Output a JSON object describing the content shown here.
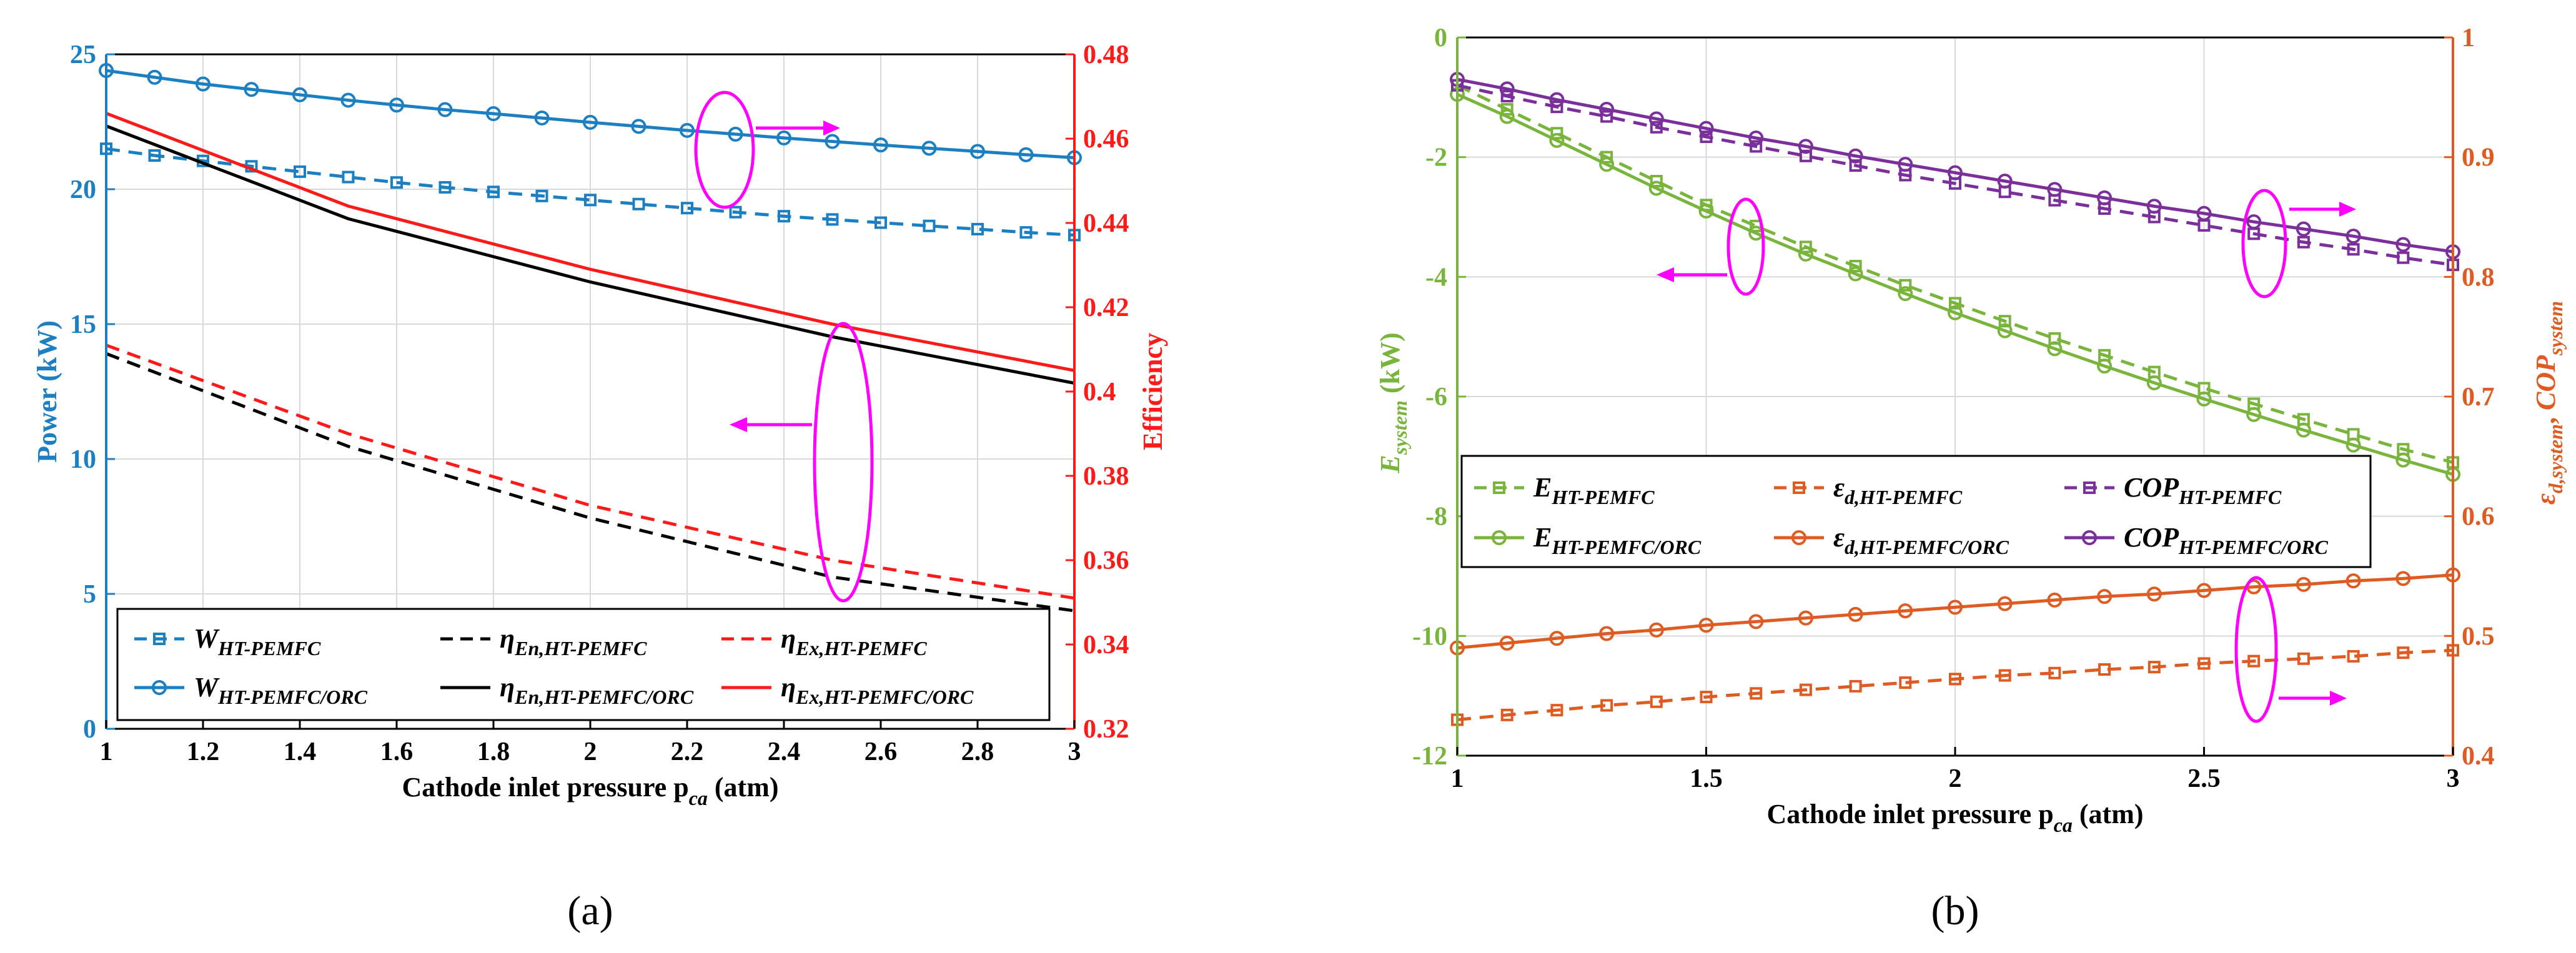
{
  "colors": {
    "blue": "#1b7fc2",
    "red": "#ff1a1a",
    "black": "#000000",
    "green": "#79b43d",
    "orange": "#de5b22",
    "purple": "#7a2f9a",
    "magenta": "#ff00ff",
    "grid": "#d9d9d9"
  },
  "chart_data": [
    {
      "panel_label": "(a)",
      "panel_letter": "a",
      "type": "line",
      "xlabel": "Cathode inlet pressure p",
      "xlabel_sub": "ca",
      "xlabel_unit": " (atm)",
      "ylabel_left": "Power (kW)",
      "ylabel_right": "Efficiency",
      "xlim": [
        1,
        3
      ],
      "ylim_left": [
        0,
        25
      ],
      "ylim_right": [
        0.32,
        0.48
      ],
      "xticks": [
        "1",
        "1.2",
        "1.4",
        "1.6",
        "1.8",
        "2",
        "2.2",
        "2.4",
        "2.6",
        "2.8",
        "3"
      ],
      "yticks_left": [
        "0",
        "5",
        "10",
        "15",
        "20",
        "25"
      ],
      "yticks_right": [
        "0.32",
        "0.34",
        "0.36",
        "0.38",
        "0.4",
        "0.42",
        "0.44",
        "0.46",
        "0.48"
      ],
      "grid": true,
      "legend_position": "bottom",
      "series": [
        {
          "id": "w-ht",
          "name_main": "W",
          "name_sub": "HT-PEMFC",
          "axis": "left",
          "color": "blue",
          "style": "dashed",
          "marker": "square",
          "x": [
            1,
            1.1,
            1.2,
            1.3,
            1.4,
            1.5,
            1.6,
            1.7,
            1.8,
            1.9,
            2.0,
            2.1,
            2.2,
            2.3,
            2.4,
            2.5,
            2.6,
            2.7,
            2.8,
            2.9,
            3.0
          ],
          "values": [
            21.5,
            21.25,
            21.05,
            20.85,
            20.65,
            20.45,
            20.25,
            20.07,
            19.9,
            19.75,
            19.6,
            19.45,
            19.3,
            19.15,
            19.0,
            18.88,
            18.76,
            18.64,
            18.52,
            18.4,
            18.3
          ]
        },
        {
          "id": "w-orc",
          "name_main": "W",
          "name_sub": "HT-PEMFC/ORC",
          "axis": "left",
          "color": "blue",
          "style": "solid",
          "marker": "circle",
          "x": [
            1,
            1.1,
            1.2,
            1.3,
            1.4,
            1.5,
            1.6,
            1.7,
            1.8,
            1.9,
            2.0,
            2.1,
            2.2,
            2.3,
            2.4,
            2.5,
            2.6,
            2.7,
            2.8,
            2.9,
            3.0
          ],
          "values": [
            24.4,
            24.15,
            23.9,
            23.7,
            23.5,
            23.3,
            23.12,
            22.95,
            22.8,
            22.64,
            22.48,
            22.33,
            22.18,
            22.04,
            21.9,
            21.77,
            21.64,
            21.52,
            21.4,
            21.28,
            21.17
          ]
        },
        {
          "id": "eta-en-ht",
          "name_main": "η",
          "name_sub": "En,HT-PEMFC",
          "axis": "right",
          "color": "black",
          "style": "dashed",
          "marker": "none",
          "x": [
            1,
            1.5,
            2,
            2.5,
            3
          ],
          "values": [
            0.409,
            0.387,
            0.37,
            0.356,
            0.348
          ]
        },
        {
          "id": "eta-en-orc",
          "name_main": "η",
          "name_sub": "En,HT-PEMFC/ORC",
          "axis": "right",
          "color": "black",
          "style": "solid",
          "marker": "none",
          "x": [
            1,
            1.5,
            2,
            2.5,
            3
          ],
          "values": [
            0.463,
            0.441,
            0.426,
            0.413,
            0.402
          ]
        },
        {
          "id": "eta-ex-ht",
          "name_main": "η",
          "name_sub": "Ex,HT-PEMFC",
          "axis": "right",
          "color": "red",
          "style": "dashed",
          "marker": "none",
          "x": [
            1,
            1.5,
            2,
            2.5,
            3
          ],
          "values": [
            0.411,
            0.39,
            0.373,
            0.36,
            0.351
          ]
        },
        {
          "id": "eta-ex-orc",
          "name_main": "η",
          "name_sub": "Ex,HT-PEMFC/ORC",
          "axis": "right",
          "color": "red",
          "style": "solid",
          "marker": "none",
          "x": [
            1,
            1.5,
            2,
            2.5,
            3
          ],
          "values": [
            0.466,
            0.444,
            0.429,
            0.416,
            0.405
          ]
        }
      ]
    },
    {
      "panel_label": "(b)",
      "panel_letter": "b",
      "type": "line",
      "xlabel": "Cathode inlet pressure p",
      "xlabel_sub": "ca",
      "xlabel_unit": " (atm)",
      "ylabel_left_main": "E",
      "ylabel_left_sub": "system",
      "ylabel_left_unit": " (kW)",
      "ylabel_right_main1": "ε",
      "ylabel_right_sub1": "d,system",
      "ylabel_right_sep": ", ",
      "ylabel_right_main2": "COP",
      "ylabel_right_sub2": "system",
      "xlim": [
        1,
        3
      ],
      "ylim_left": [
        -12,
        0
      ],
      "ylim_right": [
        0.4,
        1
      ],
      "xticks": [
        "1",
        "1.5",
        "2",
        "2.5",
        "3"
      ],
      "yticks_left": [
        "-12",
        "-10",
        "-8",
        "-6",
        "-4",
        "-2",
        "0"
      ],
      "yticks_right": [
        "0.4",
        "0.5",
        "0.6",
        "0.7",
        "0.8",
        "0.9",
        "1"
      ],
      "grid": true,
      "legend_position": "center-left",
      "series": [
        {
          "id": "e-ht",
          "name_main": "E",
          "name_sub": "HT-PEMFC",
          "axis": "left",
          "color": "green",
          "style": "dashed",
          "marker": "square",
          "x": [
            1,
            1.1,
            1.2,
            1.3,
            1.4,
            1.5,
            1.6,
            1.7,
            1.8,
            1.9,
            2.0,
            2.1,
            2.2,
            2.3,
            2.4,
            2.5,
            2.6,
            2.7,
            2.8,
            2.9,
            3.0
          ],
          "values": [
            -0.8,
            -1.2,
            -1.6,
            -2.0,
            -2.4,
            -2.8,
            -3.15,
            -3.5,
            -3.82,
            -4.14,
            -4.44,
            -4.74,
            -5.03,
            -5.31,
            -5.59,
            -5.86,
            -6.12,
            -6.38,
            -6.63,
            -6.88,
            -7.1
          ]
        },
        {
          "id": "e-orc",
          "name_main": "E",
          "name_sub": "HT-PEMFC/ORC",
          "axis": "left",
          "color": "green",
          "style": "solid",
          "marker": "circle",
          "x": [
            1,
            1.1,
            1.2,
            1.3,
            1.4,
            1.5,
            1.6,
            1.7,
            1.8,
            1.9,
            2.0,
            2.1,
            2.2,
            2.3,
            2.4,
            2.5,
            2.6,
            2.7,
            2.8,
            2.9,
            3.0
          ],
          "values": [
            -0.95,
            -1.32,
            -1.72,
            -2.12,
            -2.52,
            -2.9,
            -3.27,
            -3.62,
            -3.95,
            -4.28,
            -4.6,
            -4.9,
            -5.2,
            -5.49,
            -5.77,
            -6.04,
            -6.3,
            -6.56,
            -6.81,
            -7.06,
            -7.3
          ]
        },
        {
          "id": "ed-ht",
          "name_main": "ε",
          "name_sub": "d,HT-PEMFC",
          "axis": "right",
          "color": "orange",
          "style": "dashed",
          "marker": "square",
          "x": [
            1,
            1.1,
            1.2,
            1.3,
            1.4,
            1.5,
            1.6,
            1.7,
            1.8,
            1.9,
            2.0,
            2.1,
            2.2,
            2.3,
            2.4,
            2.5,
            2.6,
            2.7,
            2.8,
            2.9,
            3.0
          ],
          "values": [
            0.43,
            0.434,
            0.438,
            0.442,
            0.445,
            0.449,
            0.452,
            0.455,
            0.458,
            0.461,
            0.464,
            0.467,
            0.469,
            0.472,
            0.474,
            0.477,
            0.479,
            0.481,
            0.483,
            0.486,
            0.488
          ]
        },
        {
          "id": "ed-orc",
          "name_main": "ε",
          "name_sub": "d,HT-PEMFC/ORC",
          "axis": "right",
          "color": "orange",
          "style": "solid",
          "marker": "circle",
          "x": [
            1,
            1.1,
            1.2,
            1.3,
            1.4,
            1.5,
            1.6,
            1.7,
            1.8,
            1.9,
            2.0,
            2.1,
            2.2,
            2.3,
            2.4,
            2.5,
            2.6,
            2.7,
            2.8,
            2.9,
            3.0
          ],
          "values": [
            0.49,
            0.494,
            0.498,
            0.502,
            0.505,
            0.509,
            0.512,
            0.515,
            0.518,
            0.521,
            0.524,
            0.527,
            0.53,
            0.533,
            0.535,
            0.538,
            0.541,
            0.543,
            0.546,
            0.548,
            0.551
          ]
        },
        {
          "id": "cop-ht",
          "name_main": "COP",
          "name_sub": "HT-PEMFC",
          "axis": "right",
          "color": "purple",
          "style": "dashed",
          "marker": "square",
          "x": [
            1,
            1.1,
            1.2,
            1.3,
            1.4,
            1.5,
            1.6,
            1.7,
            1.8,
            1.9,
            2.0,
            2.1,
            2.2,
            2.3,
            2.4,
            2.5,
            2.6,
            2.7,
            2.8,
            2.9,
            3.0
          ],
          "values": [
            0.96,
            0.951,
            0.942,
            0.934,
            0.925,
            0.917,
            0.909,
            0.901,
            0.893,
            0.885,
            0.878,
            0.871,
            0.864,
            0.857,
            0.85,
            0.843,
            0.836,
            0.829,
            0.823,
            0.816,
            0.81
          ]
        },
        {
          "id": "cop-orc",
          "name_main": "COP",
          "name_sub": "HT-PEMFC/ORC",
          "axis": "right",
          "color": "purple",
          "style": "solid",
          "marker": "circle",
          "x": [
            1,
            1.1,
            1.2,
            1.3,
            1.4,
            1.5,
            1.6,
            1.7,
            1.8,
            1.9,
            2.0,
            2.1,
            2.2,
            2.3,
            2.4,
            2.5,
            2.6,
            2.7,
            2.8,
            2.9,
            3.0
          ],
          "values": [
            0.965,
            0.957,
            0.948,
            0.94,
            0.932,
            0.924,
            0.916,
            0.909,
            0.901,
            0.894,
            0.887,
            0.88,
            0.873,
            0.866,
            0.859,
            0.853,
            0.846,
            0.84,
            0.834,
            0.827,
            0.821
          ]
        }
      ]
    }
  ]
}
